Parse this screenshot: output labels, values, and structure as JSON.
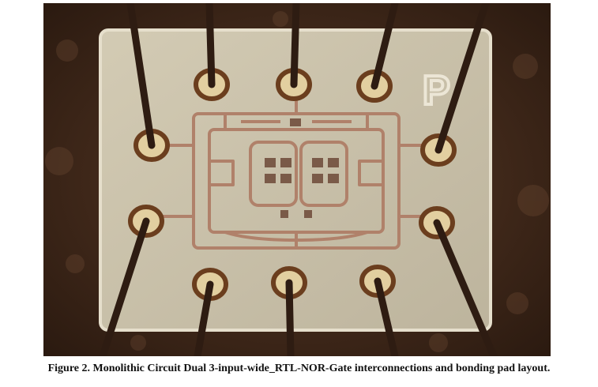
{
  "figure": {
    "caption": "Figure 2. Monolithic Circuit Dual 3-input-wide_RTL-NOR-Gate interconnections and bonding pad layout.",
    "die_marking": "P"
  },
  "colors": {
    "package_background": "#3a2317",
    "die_surface": "#c9c0a8",
    "metal_trace": "#b0816a",
    "bond_pad_ring": "#6b3e1e",
    "bond_wire": "#2e1c12"
  }
}
